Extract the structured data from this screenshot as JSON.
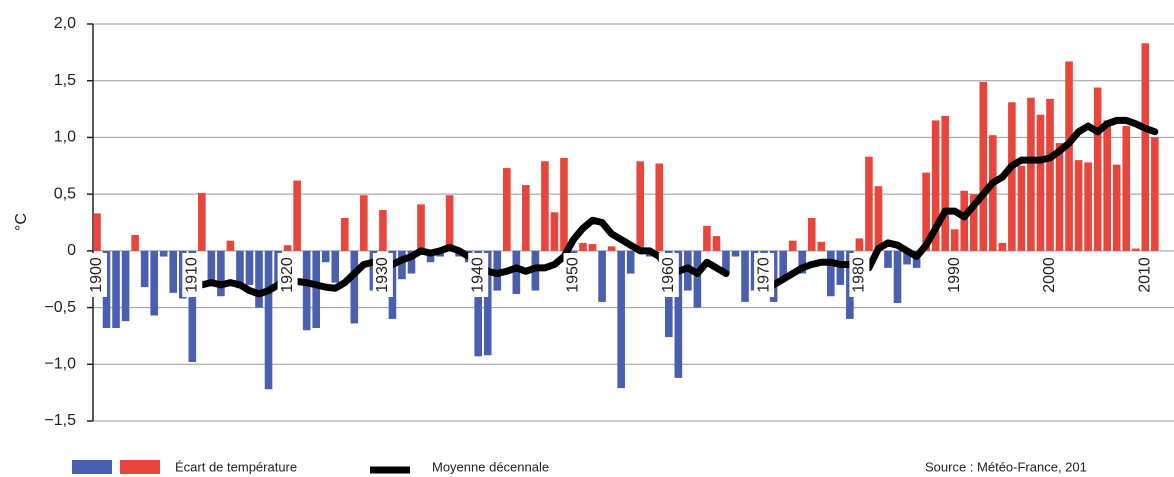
{
  "chart_data": {
    "type": "bar",
    "y_label": "°C",
    "x": [
      1900,
      1901,
      1902,
      1903,
      1904,
      1905,
      1906,
      1907,
      1908,
      1909,
      1910,
      1911,
      1912,
      1913,
      1914,
      1915,
      1916,
      1917,
      1918,
      1919,
      1920,
      1921,
      1922,
      1923,
      1924,
      1925,
      1926,
      1927,
      1928,
      1929,
      1930,
      1931,
      1932,
      1933,
      1934,
      1935,
      1936,
      1937,
      1938,
      1939,
      1940,
      1941,
      1942,
      1943,
      1944,
      1945,
      1946,
      1947,
      1948,
      1949,
      1950,
      1951,
      1952,
      1953,
      1954,
      1955,
      1956,
      1957,
      1958,
      1959,
      1960,
      1961,
      1962,
      1963,
      1964,
      1965,
      1966,
      1967,
      1968,
      1969,
      1970,
      1971,
      1972,
      1973,
      1974,
      1975,
      1976,
      1977,
      1978,
      1979,
      1980,
      1981,
      1982,
      1983,
      1984,
      1985,
      1986,
      1987,
      1988,
      1989,
      1990,
      1991,
      1992,
      1993,
      1994,
      1995,
      1996,
      1997,
      1998,
      1999,
      2000,
      2001,
      2002,
      2003,
      2004,
      2005,
      2006,
      2007,
      2008,
      2009,
      2010,
      2011
    ],
    "series": [
      {
        "name": "Écart de température",
        "type": "bar",
        "color": "#e8463c",
        "negative_color": "#4a5fb0",
        "values": [
          0.33,
          -0.68,
          -0.68,
          -0.62,
          0.14,
          -0.32,
          -0.57,
          -0.05,
          -0.37,
          -0.42,
          -0.98,
          0.51,
          -0.3,
          -0.4,
          0.09,
          -0.33,
          -0.3,
          -0.5,
          -1.22,
          -0.3,
          0.05,
          0.62,
          -0.7,
          -0.68,
          -0.1,
          -0.28,
          0.29,
          -0.64,
          0.49,
          -0.35,
          0.36,
          -0.6,
          -0.25,
          -0.2,
          0.41,
          -0.1,
          -0.05,
          0.49,
          -0.05,
          -0.1,
          -0.93,
          -0.92,
          -0.35,
          0.73,
          -0.38,
          0.58,
          -0.35,
          0.79,
          0.34,
          0.82,
          -0.1,
          0.07,
          0.06,
          -0.45,
          0.04,
          -1.21,
          -0.2,
          0.79,
          -0.05,
          0.77,
          -0.76,
          -1.12,
          -0.35,
          -0.5,
          0.22,
          0.13,
          -0.2,
          -0.05,
          -0.45,
          -0.35,
          -0.3,
          -0.45,
          -0.25,
          0.09,
          -0.2,
          0.29,
          0.08,
          -0.4,
          -0.3,
          -0.6,
          0.11,
          0.83,
          0.57,
          -0.15,
          -0.46,
          -0.12,
          -0.15,
          0.69,
          1.15,
          1.19,
          0.19,
          0.53,
          0.5,
          1.49,
          1.02,
          0.07,
          1.31,
          0.75,
          1.35,
          1.2,
          1.34,
          0.95,
          1.67,
          0.8,
          0.78,
          1.44,
          1.15,
          0.76,
          1.1,
          0.02,
          1.83,
          1.0
        ]
      },
      {
        "name": "Moyenne décennale",
        "type": "line",
        "color": "#000000",
        "values": [
          null,
          null,
          null,
          null,
          null,
          null,
          null,
          null,
          null,
          null,
          -0.33,
          -0.3,
          -0.28,
          -0.3,
          -0.28,
          -0.3,
          -0.35,
          -0.38,
          -0.35,
          -0.3,
          -0.25,
          -0.27,
          -0.28,
          -0.3,
          -0.32,
          -0.33,
          -0.28,
          -0.2,
          -0.12,
          -0.1,
          -0.15,
          -0.12,
          -0.08,
          -0.05,
          0.0,
          -0.02,
          0.0,
          0.03,
          0.0,
          -0.05,
          -0.1,
          -0.18,
          -0.2,
          -0.18,
          -0.15,
          -0.18,
          -0.15,
          -0.15,
          -0.12,
          -0.05,
          0.1,
          0.2,
          0.27,
          0.25,
          0.15,
          0.1,
          0.05,
          0.0,
          0.0,
          -0.05,
          -0.18,
          -0.18,
          -0.15,
          -0.2,
          -0.1,
          -0.15,
          -0.2,
          null,
          null,
          null,
          null,
          -0.3,
          -0.25,
          -0.2,
          -0.15,
          -0.12,
          -0.1,
          -0.1,
          -0.12,
          -0.12,
          null,
          -0.15,
          0.02,
          0.07,
          0.05,
          0.0,
          -0.05,
          0.05,
          0.2,
          0.35,
          0.35,
          0.3,
          0.4,
          0.5,
          0.6,
          0.65,
          0.75,
          0.8,
          0.8,
          0.8,
          0.82,
          0.88,
          0.95,
          1.05,
          1.1,
          1.05,
          1.12,
          1.15,
          1.15,
          1.12,
          1.08,
          1.05
        ]
      }
    ],
    "ylim": [
      -1.5,
      2.0
    ],
    "yticks": [
      {
        "value": 2.0,
        "label": "2,0"
      },
      {
        "value": 1.5,
        "label": "1,5"
      },
      {
        "value": 1.0,
        "label": "1,0"
      },
      {
        "value": 0.5,
        "label": "0,5"
      },
      0,
      {
        "value": -0.5,
        "label": "−0,5"
      },
      {
        "value": -1.0,
        "label": "−1,0"
      },
      {
        "value": -1.5,
        "label": "−1,5"
      }
    ],
    "xticks": [
      1900,
      1910,
      1920,
      1930,
      1940,
      1950,
      1960,
      1970,
      1980,
      1990,
      2000,
      2010
    ],
    "grid": true,
    "source": "Source : Météo-France, 201"
  }
}
